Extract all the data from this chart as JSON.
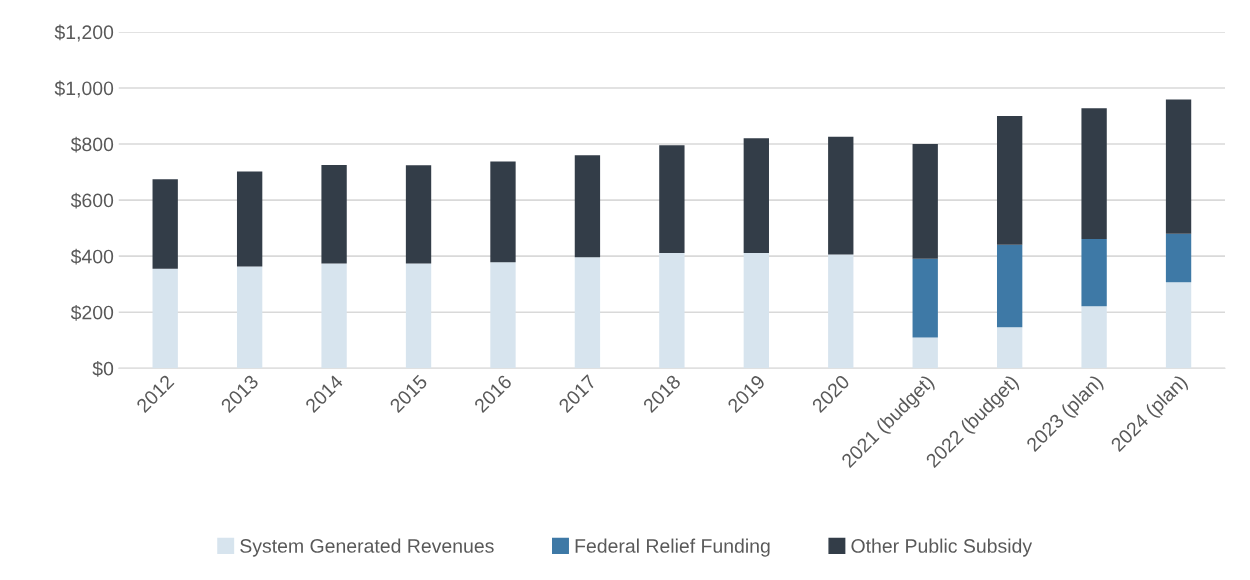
{
  "chart_data": {
    "type": "bar",
    "stacked": true,
    "categories": [
      "2012",
      "2013",
      "2014",
      "2015",
      "2016",
      "2017",
      "2018",
      "2019",
      "2020",
      "2021 (budget)",
      "2022 (budget)",
      "2023 (plan)",
      "2024 (plan)"
    ],
    "series": [
      {
        "name": "System Generated Revenues",
        "color": "#d7e4ee",
        "values": [
          355,
          363,
          374,
          374,
          378,
          396,
          411,
          411,
          406,
          110,
          146,
          221,
          307
        ]
      },
      {
        "name": "Federal Relief Funding",
        "color": "#3e79a6",
        "values": [
          0,
          0,
          0,
          0,
          0,
          0,
          0,
          0,
          0,
          281,
          295,
          240,
          173
        ]
      },
      {
        "name": "Other Public Subsidy",
        "color": "#333d48",
        "values": [
          319,
          339,
          351,
          350,
          360,
          364,
          385,
          410,
          420,
          409,
          459,
          467,
          479
        ]
      }
    ],
    "ylim": [
      0,
      1200
    ],
    "yticks": [
      {
        "value": 0,
        "label": "$0"
      },
      {
        "value": 200,
        "label": "$200"
      },
      {
        "value": 400,
        "label": "$400"
      },
      {
        "value": 600,
        "label": "$600"
      },
      {
        "value": 800,
        "label": "$800"
      },
      {
        "value": 1000,
        "label": "$1,000"
      },
      {
        "value": 1200,
        "label": "$1,200"
      }
    ],
    "grid": "y",
    "legend": "bottom"
  }
}
